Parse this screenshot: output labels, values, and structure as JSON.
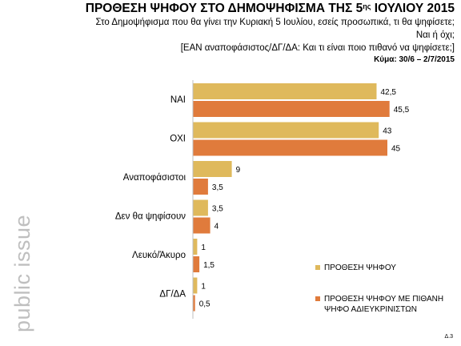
{
  "header": {
    "title_main": "ΠΡΟΘΕΣΗ ΨΗΦΟΥ ΣΤΟ ΔΗΜΟΨΗΦΙΣΜΑ ΤΗΣ 5",
    "title_sup": "ης",
    "title_end": " ΙΟΥΛΙΟΥ 2015",
    "question_line1": "Στο Δημοψήφισμα που θα γίνει την Κυριακή 5 Ιουλίου, εσείς προσωπικά, τι θα ψηφίσετε;",
    "question_line2": "Ναι ή όχι;",
    "question_line3": "[ΕΑΝ αναποφάσιστος/ΔΓ/ΔΑ: Και τι είναι ποιο πιθανό να ψηφίσετε;]",
    "fieldwork": "Κύμα: 30/6 – 2/7/2015"
  },
  "brand": "public issue",
  "page_number": "Δ.3",
  "colors": {
    "series1": "#dfb95c",
    "series2": "#e07b3c",
    "axis": "#bfbfbf"
  },
  "chart_data": {
    "type": "bar",
    "orientation": "horizontal",
    "categories": [
      "ΝΑΙ",
      "ΟΧΙ",
      "Αναποφάσιστοι",
      "Δεν θα ψηφίσουν",
      "Λευκό/Άκυρο",
      "ΔΓ/ΔΑ"
    ],
    "series": [
      {
        "name": "ΠΡΟΘΕΣΗ ΨΗΦΟΥ",
        "values": [
          42.5,
          43,
          9,
          3.5,
          1,
          1
        ],
        "labels": [
          "42,5",
          "43",
          "9",
          "3,5",
          "1",
          "1"
        ]
      },
      {
        "name": "ΠΡΟΘΕΣΗ ΨΗΦΟΥ ΜΕ ΠΙΘΑΝΗ ΨΗΦΟ ΑΔΙΕΥΚΡΙΝΙΣΤΩΝ",
        "values": [
          45.5,
          45,
          3.5,
          4,
          1.5,
          0.5
        ],
        "labels": [
          "45,5",
          "45",
          "3,5",
          "4",
          "1,5",
          "0,5"
        ]
      }
    ],
    "legend_series2_line1": "ΠΡΟΘΕΣΗ ΨΗΦΟΥ ΜΕ ΠΙΘΑΝΗ",
    "legend_series2_line2": "ΨΗΦΟ ΑΔΙΕΥΚΡΙΝΙΣΤΩΝ",
    "xlim": [
      0,
      55
    ],
    "grid": false,
    "legend_position": "bottom-right"
  }
}
